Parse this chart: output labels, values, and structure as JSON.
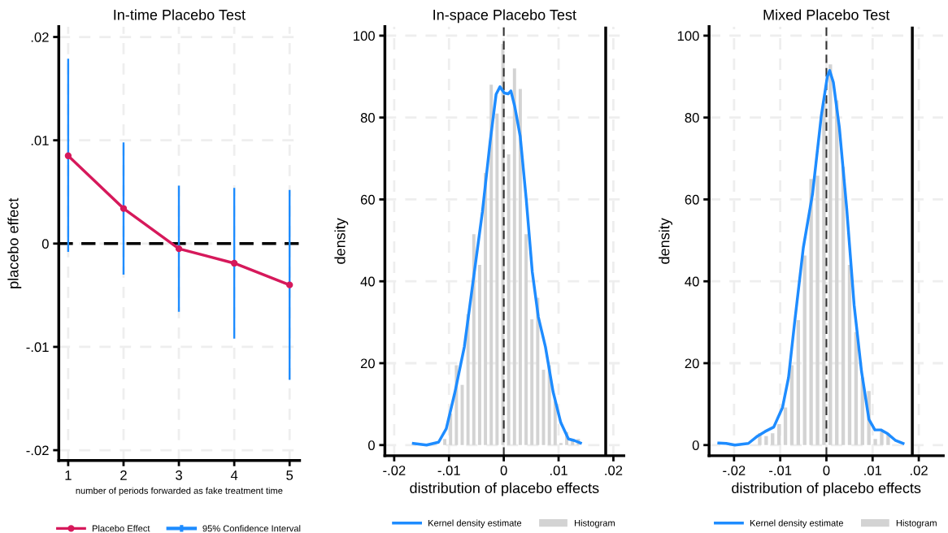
{
  "chart_data": [
    {
      "type": "line",
      "title": "In-time Placebo Test",
      "xlabel": "number of periods forwarded as fake treatment time",
      "ylabel": "placebo effect",
      "x": [
        1,
        2,
        3,
        4,
        5
      ],
      "series": [
        {
          "name": "Placebo Effect",
          "color": "#d6195b",
          "values": [
            0.0085,
            0.0034,
            -0.0005,
            -0.0019,
            -0.004
          ],
          "marker": "circle"
        },
        {
          "name": "95% Confidence Interval",
          "type": "bar",
          "color": "#1e8cff",
          "base": [
            -0.0008,
            -0.003,
            -0.0066,
            -0.0092,
            -0.0132
          ],
          "values": [
            0.0187,
            0.0128,
            0.0122,
            0.0146,
            0.0184
          ]
        }
      ],
      "xlim": [
        0.83,
        5.18
      ],
      "xticks": [
        1,
        2,
        3,
        4,
        5
      ],
      "ylim": [
        -0.021,
        0.021
      ],
      "yticks": [
        {
          "value": -0.02,
          "label": "-.02"
        },
        {
          "value": -0.01,
          "label": "-.01"
        },
        0,
        {
          "value": 0.01,
          "label": ".01"
        },
        {
          "value": 0.02,
          "label": ".02"
        }
      ],
      "ref_lines": [
        {
          "axis": "y",
          "value": 0,
          "label": null,
          "color": "#000000",
          "line_style": "dashed"
        }
      ],
      "grid": true,
      "legend": "bottom"
    },
    {
      "type": "histogram",
      "title": "In-space Placebo Test",
      "xlabel": "distribution of placebo effects",
      "ylabel": "density",
      "series": [
        {
          "name": "Kernel density estimate",
          "type": "line",
          "color": "#1e8cff",
          "x": [
            -0.0165,
            -0.0141,
            -0.0119,
            -0.0105,
            -0.0089,
            -0.0072,
            -0.0056,
            -0.0039,
            -0.0025,
            -0.0014,
            -0.0007,
            0.0001,
            0.0008,
            0.0013,
            0.002,
            0.003,
            0.0041,
            0.0052,
            0.0063,
            0.0076,
            0.009,
            0.0104,
            0.0118,
            0.0129,
            0.014
          ],
          "values": [
            0.4,
            0,
            0.7,
            4,
            13,
            24,
            40,
            57,
            74,
            85.7,
            87.5,
            86,
            85.8,
            86.5,
            82.7,
            75.4,
            60,
            42.3,
            31.3,
            24,
            13,
            5.5,
            1.5,
            1.1,
            0.5
          ]
        },
        {
          "name": "Histogram",
          "type": "histogram",
          "color": "#d3d3d3",
          "bins": [
            -0.0113,
            -0.01024,
            -0.00918,
            -0.00812,
            -0.00706,
            -0.006,
            -0.00494,
            -0.00388,
            -0.00282,
            -0.00176,
            -0.0007,
            0.00036,
            0.00142,
            0.00248,
            0.00354,
            0.0046,
            0.00566,
            0.00672,
            0.00778,
            0.00884,
            0.0099,
            0.01096,
            0.01202,
            0.01308,
            0.01414
          ],
          "values": [
            1.5,
            7.7,
            19.5,
            14.7,
            32,
            51.5,
            44,
            66.5,
            88,
            81,
            98,
            71,
            92,
            87,
            51.5,
            30.7,
            36,
            18.4,
            19.5,
            10.7,
            0.5,
            3.2,
            1,
            1.5
          ]
        }
      ],
      "xlim": [
        -0.0217,
        0.0219
      ],
      "xticks": [
        {
          "value": -0.02,
          "label": "-.02"
        },
        {
          "value": -0.01,
          "label": "-.01"
        },
        0,
        {
          "value": 0.01,
          "label": ".01"
        },
        {
          "value": 0.02,
          "label": ".02"
        }
      ],
      "ylim": [
        -2.6,
        102.2
      ],
      "yticks": [
        0,
        20,
        40,
        60,
        80,
        100
      ],
      "ref_lines": [
        {
          "axis": "x",
          "value": 0,
          "label": null,
          "color": "#333333",
          "line_style": "dashed"
        },
        {
          "axis": "x",
          "value": 0.0186,
          "label": null,
          "color": "#000000",
          "line_style": "solid"
        }
      ],
      "grid": true,
      "legend": "bottom"
    },
    {
      "type": "histogram",
      "title": "Mixed Placebo Test",
      "xlabel": "distribution of placebo effects",
      "ylabel": "density",
      "series": [
        {
          "name": "Kernel density estimate",
          "type": "line",
          "color": "#1e8cff",
          "x": [
            -0.0233,
            -0.0217,
            -0.0198,
            -0.0169,
            -0.0149,
            -0.0133,
            -0.0114,
            -0.0095,
            -0.0082,
            -0.0069,
            -0.005,
            -0.003,
            -0.0011,
            0.0002,
            0.0007,
            0.0015,
            0.0028,
            0.0044,
            0.006,
            0.0076,
            0.0092,
            0.0105,
            0.0118,
            0.0131,
            0.015,
            0.0166
          ],
          "values": [
            0.5,
            0.4,
            0,
            0.4,
            2.2,
            3.3,
            4.4,
            9.2,
            16.5,
            29.8,
            48.2,
            61.4,
            80.5,
            90,
            91.5,
            88.6,
            77.6,
            57.7,
            34.2,
            18,
            6.3,
            3.7,
            3.7,
            2.9,
            1.1,
            0.4
          ]
        },
        {
          "name": "Histogram",
          "type": "histogram",
          "color": "#d3d3d3",
          "bins": [
            -0.01513,
            -0.01374,
            -0.01235,
            -0.01096,
            -0.00957,
            -0.00818,
            -0.00679,
            -0.0054,
            -0.00401,
            -0.00262,
            -0.00123,
            0.00016,
            0.00155,
            0.00294,
            0.00433,
            0.00572,
            0.00711,
            0.0085,
            0.00989,
            0.01128,
            0.01267,
            0.01406
          ],
          "values": [
            2.9,
            2.2,
            2.9,
            5.1,
            9.2,
            19.5,
            30.5,
            46.3,
            65,
            65.8,
            83.5,
            93,
            84.2,
            68,
            44,
            27.6,
            16.5,
            13.2,
            1.5,
            3.3,
            2.9
          ]
        }
      ],
      "xlim": [
        -0.0254,
        0.0253
      ],
      "xticks": [
        {
          "value": -0.02,
          "label": "-.02"
        },
        {
          "value": -0.01,
          "label": "-.01"
        },
        0,
        {
          "value": 0.01,
          "label": ".01"
        },
        {
          "value": 0.02,
          "label": ".02"
        }
      ],
      "ylim": [
        -2.6,
        102.2
      ],
      "yticks": [
        0,
        20,
        40,
        60,
        80,
        100
      ],
      "ref_lines": [
        {
          "axis": "x",
          "value": 0,
          "label": null,
          "color": "#333333",
          "line_style": "dashed"
        },
        {
          "axis": "x",
          "value": 0.0186,
          "label": null,
          "color": "#000000",
          "line_style": "solid"
        }
      ],
      "grid": true,
      "legend": "bottom"
    }
  ]
}
